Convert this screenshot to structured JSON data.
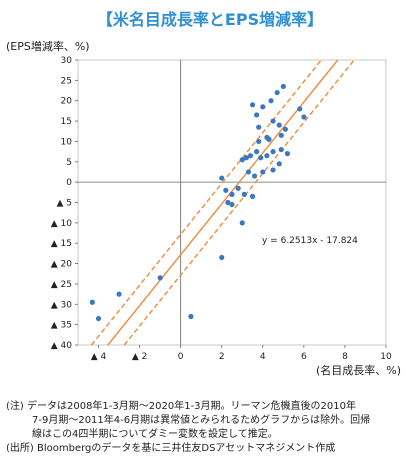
{
  "chart_data": {
    "type": "scatter",
    "title": "【米名目成長率とEPS増減率】",
    "ylabel": "(EPS増減率、%)",
    "xlabel": "(名目成長率、%)",
    "xlim": [
      -5,
      10
    ],
    "ylim": [
      -40,
      30
    ],
    "x_ticks": [
      {
        "v": -4,
        "label": "▲ 4"
      },
      {
        "v": -2,
        "label": "▲ 2"
      },
      {
        "v": 0,
        "label": "0"
      },
      {
        "v": 2,
        "label": "2"
      },
      {
        "v": 4,
        "label": "4"
      },
      {
        "v": 6,
        "label": "6"
      },
      {
        "v": 8,
        "label": "8"
      },
      {
        "v": 10,
        "label": "10"
      }
    ],
    "y_ticks": [
      {
        "v": 30,
        "label": "30"
      },
      {
        "v": 25,
        "label": "25"
      },
      {
        "v": 20,
        "label": "20"
      },
      {
        "v": 15,
        "label": "15"
      },
      {
        "v": 10,
        "label": "10"
      },
      {
        "v": 5,
        "label": "5"
      },
      {
        "v": 0,
        "label": "0"
      },
      {
        "v": -5,
        "label": "▲ 5"
      },
      {
        "v": -10,
        "label": "▲ 10"
      },
      {
        "v": -15,
        "label": "▲ 15"
      },
      {
        "v": -20,
        "label": "▲ 20"
      },
      {
        "v": -25,
        "label": "▲ 25"
      },
      {
        "v": -30,
        "label": "▲ 30"
      },
      {
        "v": -35,
        "label": "▲ 35"
      },
      {
        "v": -40,
        "label": "▲ 40"
      }
    ],
    "regression": {
      "slope": 6.2513,
      "intercept": -17.824,
      "band": 5,
      "label": "y = 6.2513x - 17.824"
    },
    "points": [
      [
        -4.3,
        -29.5
      ],
      [
        -4.0,
        -33.5
      ],
      [
        -3.0,
        -27.5
      ],
      [
        -1.0,
        -23.5
      ],
      [
        0.5,
        -33.0
      ],
      [
        2.0,
        -18.5
      ],
      [
        2.0,
        1.0
      ],
      [
        2.2,
        -2.0
      ],
      [
        2.3,
        -5.0
      ],
      [
        2.5,
        -3.0
      ],
      [
        2.5,
        -5.5
      ],
      [
        2.8,
        -1.5
      ],
      [
        3.0,
        -10.0
      ],
      [
        3.0,
        5.5
      ],
      [
        3.1,
        -3.0
      ],
      [
        3.2,
        6.0
      ],
      [
        3.3,
        2.5
      ],
      [
        3.4,
        6.5
      ],
      [
        3.5,
        -3.5
      ],
      [
        3.5,
        19.0
      ],
      [
        3.6,
        1.5
      ],
      [
        3.7,
        7.5
      ],
      [
        3.7,
        16.5
      ],
      [
        3.8,
        10.0
      ],
      [
        3.8,
        13.5
      ],
      [
        3.9,
        6.0
      ],
      [
        4.0,
        2.5
      ],
      [
        4.0,
        18.5
      ],
      [
        4.2,
        6.5
      ],
      [
        4.2,
        11.0
      ],
      [
        4.3,
        10.5
      ],
      [
        4.4,
        20.0
      ],
      [
        4.5,
        7.5
      ],
      [
        4.5,
        3.0
      ],
      [
        4.5,
        15.0
      ],
      [
        4.7,
        22.0
      ],
      [
        4.8,
        4.5
      ],
      [
        4.8,
        14.0
      ],
      [
        4.9,
        11.5
      ],
      [
        4.9,
        8.0
      ],
      [
        5.0,
        23.5
      ],
      [
        5.1,
        13.0
      ],
      [
        5.2,
        7.0
      ],
      [
        5.8,
        18.0
      ],
      [
        6.0,
        16.0
      ]
    ]
  },
  "notes": {
    "line1": "(注) データは2008年1-3月期～2020年1-3月期。リーマン危機直後の2010年",
    "line2": "7-9月期～2011年4-6月期は異常値とみられるためグラフからは除外。回帰",
    "line3": "線はこの4四半期についてダミー変数を設定して推定。",
    "source": "(出所) Bloombergのデータを基に三井住友DSアセットマネジメント作成"
  },
  "colors": {
    "title": "#2f8fd0",
    "point": "#3b78c2",
    "line": "#ef8a3c",
    "axis": "#666666",
    "grid": "#c8c8c8"
  }
}
